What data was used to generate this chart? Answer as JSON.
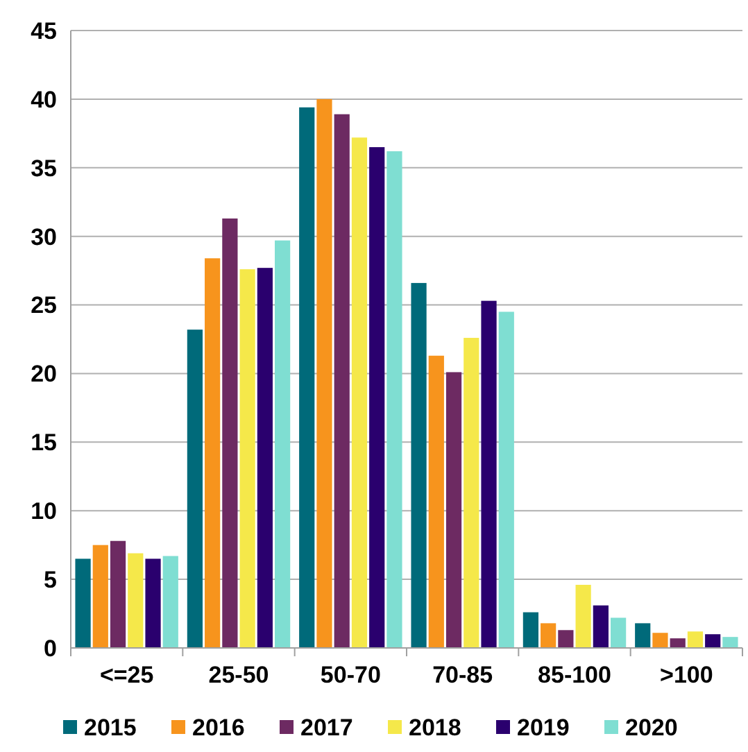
{
  "chart_data": {
    "type": "bar",
    "categories": [
      "<=25",
      "25-50",
      "50-70",
      "70-85",
      "85-100",
      ">100"
    ],
    "series": [
      {
        "name": "2015",
        "color": "#006a7a",
        "values": [
          6.5,
          23.2,
          39.4,
          26.6,
          2.6,
          1.8
        ]
      },
      {
        "name": "2016",
        "color": "#f7941d",
        "values": [
          7.5,
          28.4,
          40,
          21.3,
          1.8,
          1.1
        ]
      },
      {
        "name": "2017",
        "color": "#6d2a62",
        "values": [
          7.8,
          31.3,
          38.9,
          20.1,
          1.3,
          0.7
        ]
      },
      {
        "name": "2018",
        "color": "#f5e84a",
        "values": [
          6.9,
          27.6,
          37.2,
          22.6,
          4.6,
          1.2
        ]
      },
      {
        "name": "2019",
        "color": "#2a006e",
        "values": [
          6.5,
          27.7,
          36.5,
          25.3,
          3.1,
          1.0
        ]
      },
      {
        "name": "2020",
        "color": "#7fded2",
        "values": [
          6.7,
          29.7,
          36.2,
          24.5,
          2.2,
          0.8
        ]
      }
    ],
    "ylim": [
      0,
      45
    ],
    "yticks": [
      0,
      5,
      10,
      15,
      20,
      25,
      30,
      35,
      40,
      45
    ],
    "grid": "y",
    "legend": "bottom"
  }
}
